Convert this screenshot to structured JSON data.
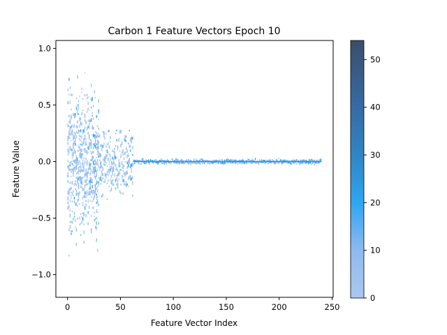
{
  "chart_data": {
    "type": "heatmap",
    "title": "Carbon 1 Feature Vectors Epoch 10",
    "xlabel": "Feature Vector Index",
    "ylabel": "Feature Value",
    "xlim": [
      -11,
      251
    ],
    "ylim": [
      -1.2,
      1.07
    ],
    "xticks": [
      0,
      50,
      100,
      150,
      200,
      250
    ],
    "xtick_labels": [
      "0",
      "50",
      "100",
      "150",
      "200",
      "250"
    ],
    "yticks": [
      -1.0,
      -0.5,
      0.0,
      0.5,
      1.0
    ],
    "ytick_labels": [
      "−1.0",
      "−0.5",
      "0.0",
      "0.5",
      "1.0"
    ],
    "colorbar": {
      "range": [
        0,
        54
      ],
      "ticks": [
        0,
        10,
        20,
        30,
        40,
        50
      ],
      "tick_labels": [
        "0",
        "10",
        "20",
        "30",
        "40",
        "50"
      ],
      "colors": [
        "#a9c8f0",
        "#8fbbf0",
        "#2ea6f2",
        "#2f86c6",
        "#366aa3",
        "#3b4e6b"
      ]
    },
    "segments": [
      {
        "x_range": [
          0,
          30
        ],
        "y_spread": 0.55,
        "y_max_outlier": 0.97,
        "y_min_outlier": -0.95
      },
      {
        "x_range": [
          30,
          62
        ],
        "y_spread": 0.25,
        "y_max_outlier": 0.28,
        "y_min_outlier": -0.36
      },
      {
        "x_range": [
          62,
          240
        ],
        "y_spread": 0.03,
        "y_center": 0.0
      }
    ]
  }
}
